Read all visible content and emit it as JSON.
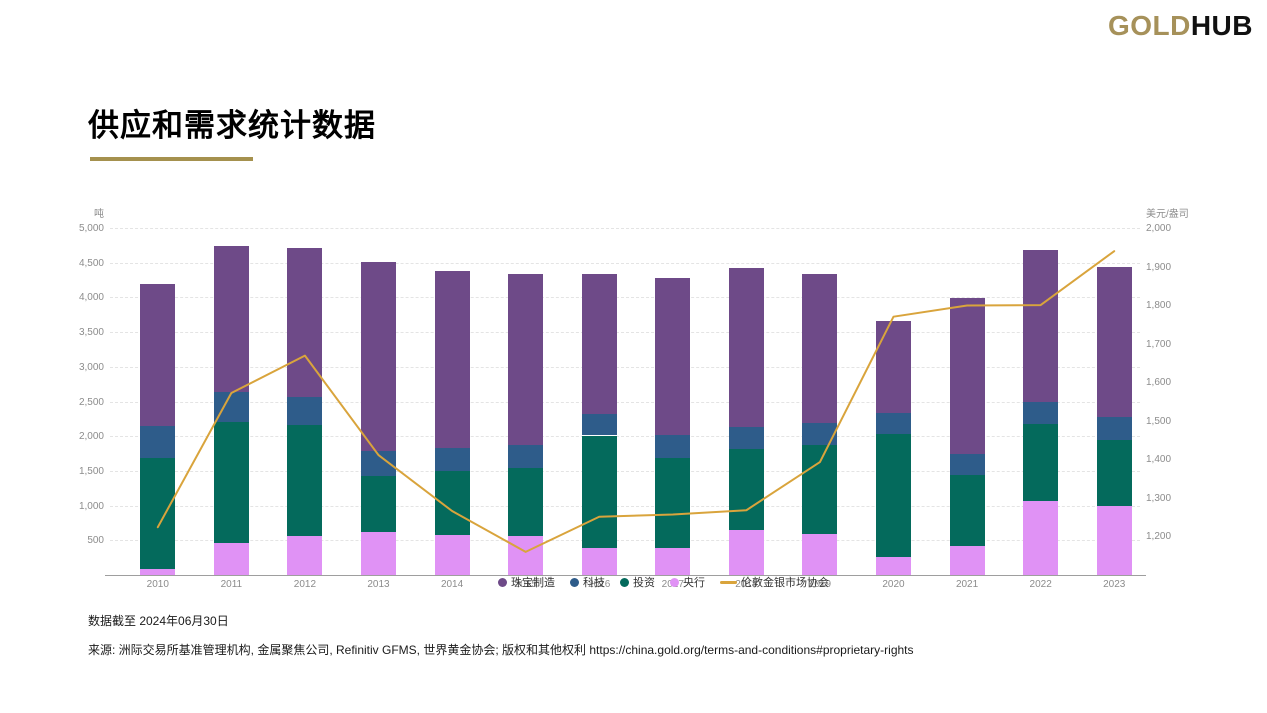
{
  "header": {
    "logo_gold": "GOLD",
    "logo_black": "HUB"
  },
  "title": "供应和需求统计数据",
  "footer": {
    "as_of": "数据截至 2024年06月30日",
    "source": "来源:  洲际交易所基准管理机构, 金属聚焦公司, Refinitiv GFMS, 世界黄金协会; 版权和其他权利 https://china.gold.org/terms-and-conditions#proprietary-rights"
  },
  "colors": {
    "brand_gold": "#A6915A",
    "title_underline": "#A5914E",
    "jewellery_purple": "#6E4A88",
    "tech_blue": "#2E5C8A",
    "investment_teal": "#046A5C",
    "central_bank_violet": "#E092F5",
    "price_line_gold": "#D9A43C",
    "grid": "#E4E4E4",
    "axis_text": "#8C8C8C"
  },
  "chart_data": {
    "type": "combo",
    "subtype": "stacked-bar-with-line",
    "categories": [
      "2010",
      "2011",
      "2012",
      "2013",
      "2014",
      "2015",
      "2016",
      "2017",
      "2018",
      "2019",
      "2020",
      "2021",
      "2022",
      "2023"
    ],
    "series": [
      {
        "name": "珠宝制造",
        "type": "bar",
        "axis": "left",
        "color": "#6E4A88",
        "values": [
          2050,
          2100,
          2145,
          2735,
          2550,
          2460,
          2015,
          2260,
          2290,
          2140,
          1320,
          2245,
          2185,
          2175
        ]
      },
      {
        "name": "科技",
        "type": "bar",
        "axis": "left",
        "color": "#2E5C8A",
        "values": [
          460,
          430,
          405,
          360,
          330,
          335,
          310,
          335,
          320,
          320,
          310,
          310,
          320,
          320
        ]
      },
      {
        "name": "投资",
        "type": "bar",
        "axis": "left",
        "color": "#046A5C",
        "values": [
          1610,
          1750,
          1595,
          795,
          930,
          970,
          1615,
          1295,
          1165,
          1285,
          1775,
          1020,
          1105,
          950
        ]
      },
      {
        "name": "央行",
        "type": "bar",
        "axis": "left",
        "color": "#E092F5",
        "values": [
          80,
          460,
          565,
          625,
          575,
          565,
          395,
          385,
          650,
          590,
          255,
          420,
          1070,
          1000
        ]
      },
      {
        "name": "伦敦金银市场协会",
        "type": "line",
        "axis": "right",
        "color": "#D9A43C",
        "values": [
          1224,
          1572,
          1669,
          1411,
          1266,
          1160,
          1251,
          1257,
          1268,
          1393,
          1770,
          1799,
          1800,
          1940
        ]
      }
    ],
    "stack_bottom_to_top": [
      "央行",
      "投资",
      "科技",
      "珠宝制造"
    ],
    "left_axis": {
      "title": "吨",
      "min": 0,
      "max": 5000,
      "tick_interval": 500,
      "ticks": [
        500,
        1000,
        1500,
        2000,
        2500,
        3000,
        3500,
        4000,
        4500,
        5000
      ]
    },
    "right_axis": {
      "title": "美元/盎司",
      "min": 1100,
      "max": 2000,
      "tick_interval": 100,
      "ticks": [
        1200,
        1300,
        1400,
        1500,
        1600,
        1700,
        1800,
        1900,
        2000
      ]
    },
    "grid": "horizontal-dashed",
    "legend_position": "bottom-center-overlapping-x-axis-labels"
  }
}
